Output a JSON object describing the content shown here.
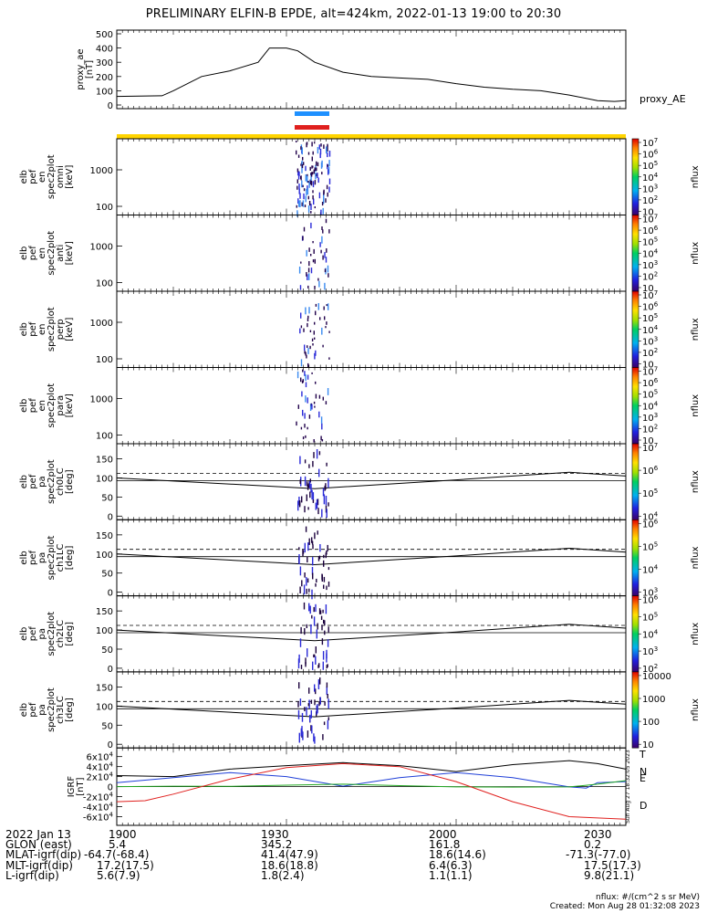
{
  "title": "PRELIMINARY ELFIN-B EPDE, alt=424km, 2022-01-13 19:00 to 20:30",
  "time_axis": {
    "start": "19:00",
    "end": "20:30",
    "ticks": [
      "1900",
      "1930",
      "2000",
      "2030"
    ],
    "date_label": "2022 Jan 13"
  },
  "panels": {
    "proxy_ae": {
      "ylabel": [
        "proxy_ae",
        "[nT]"
      ],
      "right_label": "proxy_AE",
      "yticks": [
        "500",
        "400",
        "300",
        "200",
        "100",
        "0"
      ]
    },
    "bars": {
      "blue": "#1e90ff",
      "red": "#e0201e",
      "yellow": "#ffd400"
    },
    "spectra": [
      {
        "ylabel": [
          "elb",
          "pef",
          "en",
          "spec2plot",
          "omni",
          "[keV]"
        ],
        "yticks": [
          "1000",
          "100"
        ],
        "cb_ticks": [
          "10^7",
          "10^6",
          "10^5",
          "10^4",
          "10^3",
          "10^2",
          "10"
        ],
        "cb_label": "nflux"
      },
      {
        "ylabel": [
          "elb",
          "pef",
          "en",
          "spec2plot",
          "anti",
          "[keV]"
        ],
        "yticks": [
          "1000",
          "100"
        ],
        "cb_ticks": [
          "10^7",
          "10^6",
          "10^5",
          "10^4",
          "10^3",
          "10^2",
          "10"
        ],
        "cb_label": "nflux"
      },
      {
        "ylabel": [
          "elb",
          "pef",
          "en",
          "spec2plot",
          "perp",
          "[keV]"
        ],
        "yticks": [
          "1000",
          "100"
        ],
        "cb_ticks": [
          "10^7",
          "10^6",
          "10^5",
          "10^4",
          "10^3",
          "10^2",
          "10"
        ],
        "cb_label": "nflux"
      },
      {
        "ylabel": [
          "elb",
          "pef",
          "en",
          "spec2plot",
          "para",
          "[keV]"
        ],
        "yticks": [
          "1000",
          "100"
        ],
        "cb_ticks": [
          "10^7",
          "10^6",
          "10^5",
          "10^4",
          "10^3",
          "10^2",
          "10"
        ],
        "cb_label": "nflux"
      }
    ],
    "pitch": [
      {
        "ylabel": [
          "elb",
          "pef",
          "pa",
          "spec2plot",
          "ch0LC",
          "[deg]"
        ],
        "yticks": [
          "150",
          "100",
          "50",
          "0"
        ],
        "cb_ticks": [
          "10^7",
          "10^6",
          "10^5",
          "10^4"
        ],
        "cb_label": "nflux"
      },
      {
        "ylabel": [
          "elb",
          "pef",
          "pa",
          "spec2plot",
          "ch1LC",
          "[deg]"
        ],
        "yticks": [
          "150",
          "100",
          "50",
          "0"
        ],
        "cb_ticks": [
          "10^6",
          "10^5",
          "10^4",
          "10^3"
        ],
        "cb_label": "nflux"
      },
      {
        "ylabel": [
          "elb",
          "pef",
          "pa",
          "spec2plot",
          "ch2LC",
          "[deg]"
        ],
        "yticks": [
          "150",
          "100",
          "50",
          "0"
        ],
        "cb_ticks": [
          "10^6",
          "10^5",
          "10^4",
          "10^3",
          "10^2"
        ],
        "cb_label": "nflux"
      },
      {
        "ylabel": [
          "elb",
          "pef",
          "pa",
          "spec2plot",
          "ch3LC",
          "[deg]"
        ],
        "yticks": [
          "150",
          "100",
          "50",
          "0"
        ],
        "cb_ticks": [
          "10000",
          "1000",
          "100",
          "10"
        ],
        "cb_label": "nflux"
      }
    ],
    "igrf": {
      "ylabel": [
        "IGRF",
        "[nT]"
      ],
      "yticks": [
        "6x10^4",
        "4x10^4",
        "2x10^4",
        "0",
        "-2x10^4",
        "-4x10^4",
        "-6x10^4"
      ],
      "legend": [
        {
          "label": "T",
          "color": "#000000"
        },
        {
          "label": "N",
          "color": "#1f3fd8"
        },
        {
          "label": "E",
          "color": "#22a822"
        },
        {
          "label": "D",
          "color": "#e0201e"
        }
      ],
      "side_text": "Sun Aug 27 18:32:05 2023"
    }
  },
  "footer": {
    "rows": [
      {
        "label": "2022 Jan 13",
        "values": [
          "1900",
          "1930",
          "2000",
          "2030"
        ]
      },
      {
        "label": "GLON (east)",
        "values": [
          "5.4",
          "345.2",
          "161.8",
          "0.2"
        ]
      },
      {
        "label": "MLAT-igrf(dip)",
        "values": [
          "-64.7(-68.4)",
          "41.4(47.9)",
          "18.6(14.6)",
          "-71.3(-77.0)"
        ]
      },
      {
        "label": "MLT-igrf(dip)",
        "values": [
          "17.2(17.5)",
          "18.6(18.8)",
          "6.4(6.3)",
          "17.5(17.3)"
        ]
      },
      {
        "label": "L-igrf(dip)",
        "values": [
          "5.6(7.9)",
          "1.8(2.4)",
          "1.1(1.1)",
          "9.8(21.1)"
        ]
      }
    ],
    "units_note": "nflux: #/(cm^2 s sr MeV)",
    "created": "Created: Mon Aug 28 01:32:08 2023"
  },
  "chart_data": [
    {
      "type": "line",
      "panel": "proxy_ae",
      "x_unit": "minutes after 19:00",
      "ylim": [
        0,
        550
      ],
      "series": [
        {
          "name": "proxy_AE",
          "x": [
            0,
            8,
            10,
            15,
            20,
            25,
            27,
            30,
            32,
            35,
            40,
            45,
            50,
            55,
            60,
            65,
            70,
            75,
            80,
            85,
            88,
            90
          ],
          "y": [
            60,
            65,
            100,
            200,
            240,
            300,
            400,
            400,
            380,
            300,
            230,
            200,
            190,
            180,
            150,
            125,
            110,
            100,
            70,
            30,
            25,
            30
          ]
        }
      ]
    },
    {
      "type": "line",
      "panel": "igrf",
      "x_unit": "minutes after 19:00",
      "ylim": [
        -70000,
        70000
      ],
      "series": [
        {
          "name": "T",
          "x": [
            0,
            10,
            20,
            30,
            40,
            50,
            60,
            70,
            80,
            85,
            90
          ],
          "y": [
            22000,
            20000,
            35000,
            42000,
            48000,
            42000,
            30000,
            44000,
            52000,
            46000,
            35000
          ]
        },
        {
          "name": "N",
          "x": [
            0,
            10,
            20,
            30,
            40,
            50,
            60,
            70,
            80,
            83,
            85,
            90
          ],
          "y": [
            8000,
            18000,
            28000,
            20000,
            1000,
            18000,
            28000,
            18000,
            -500,
            -3000,
            8000,
            10000
          ]
        },
        {
          "name": "E",
          "x": [
            0,
            10,
            20,
            30,
            40,
            50,
            60,
            70,
            80,
            85,
            90
          ],
          "y": [
            0,
            1000,
            500,
            3000,
            5000,
            2000,
            -500,
            -1000,
            -500,
            5000,
            12000
          ]
        },
        {
          "name": "D",
          "x": [
            0,
            5,
            10,
            20,
            30,
            40,
            50,
            60,
            70,
            80,
            90
          ],
          "y": [
            -30000,
            -28000,
            -15000,
            15000,
            38000,
            46000,
            40000,
            10000,
            -30000,
            -60000,
            -65000
          ]
        }
      ]
    }
  ]
}
